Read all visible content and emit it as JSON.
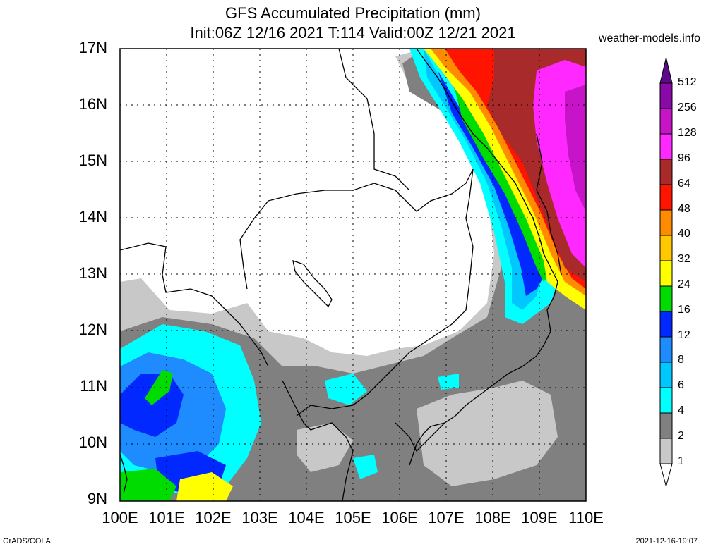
{
  "title": {
    "line1": "GFS Accumulated Precipitation (mm)",
    "line2": "Init:06Z 12/16 2021 T:114 Valid:00Z 12/21 2021"
  },
  "source": "weather-models.info",
  "footer": {
    "left": "GrADS/COLA",
    "right": "2021-12-16-19:07"
  },
  "axes": {
    "lat_labels": [
      "17N",
      "16N",
      "15N",
      "14N",
      "13N",
      "12N",
      "11N",
      "10N",
      "9N"
    ],
    "lon_labels": [
      "100E",
      "101E",
      "102E",
      "103E",
      "104E",
      "105E",
      "106E",
      "107E",
      "108E",
      "109E",
      "110E"
    ],
    "lat_range": [
      9,
      17
    ],
    "lon_range": [
      100,
      110
    ],
    "grid": "dotted"
  },
  "colorbar": {
    "levels": [
      "512",
      "256",
      "128",
      "96",
      "64",
      "48",
      "40",
      "32",
      "24",
      "16",
      "12",
      "8",
      "6",
      "4",
      "2",
      "1"
    ],
    "colors": {
      "512": "#5b0a8a",
      "256": "#8a0aa8",
      "128": "#c814c8",
      "96": "#ff28ff",
      "64": "#a82a2a",
      "48": "#ff1400",
      "40": "#ff8c00",
      "32": "#ffc800",
      "24": "#ffff00",
      "16": "#00dc00",
      "12": "#0028ff",
      "8": "#1e8cff",
      "6": "#00c8ff",
      "4": "#00ffff",
      "2": "#808080",
      "1": "#c8c8c8"
    }
  }
}
